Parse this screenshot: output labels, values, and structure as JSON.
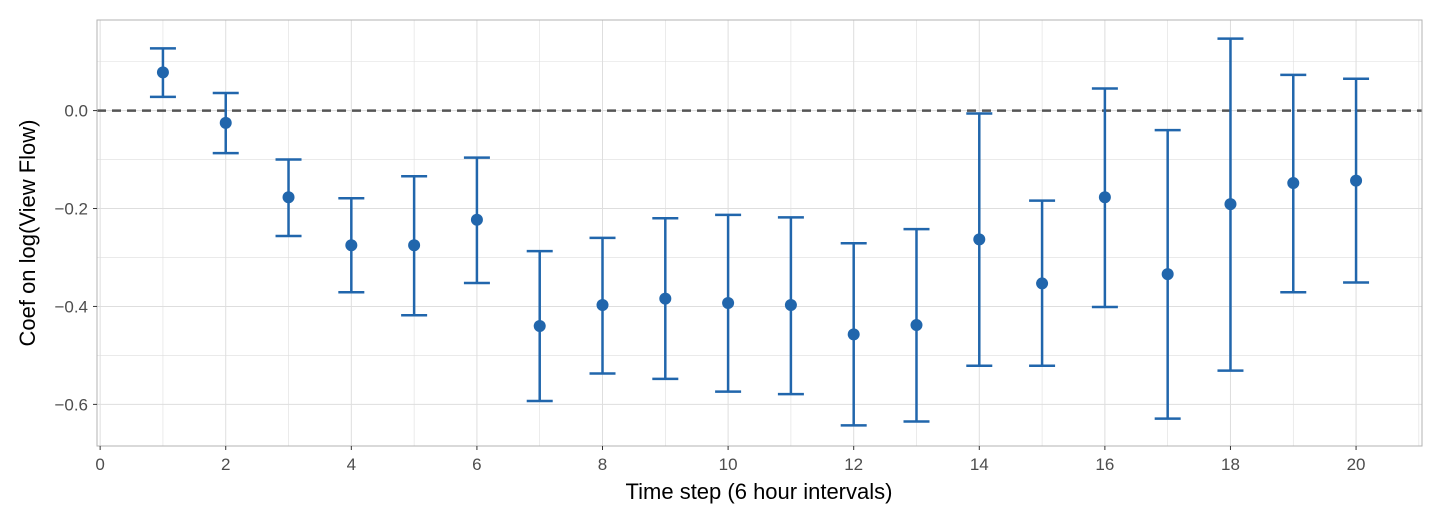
{
  "chart_data": {
    "type": "errorbar",
    "xlabel": "Time step (6 hour intervals)",
    "ylabel": "Coef on log(View Flow)",
    "xlim": [
      -0.05,
      21.05
    ],
    "ylim": [
      -0.685,
      0.185
    ],
    "x_ticks": [
      0,
      2,
      4,
      6,
      8,
      10,
      12,
      14,
      16,
      18,
      20
    ],
    "x_tick_labels": [
      "0",
      "2",
      "4",
      "6",
      "8",
      "10",
      "12",
      "14",
      "16",
      "18",
      "20"
    ],
    "y_ticks": [
      0.0,
      -0.2,
      -0.4,
      -0.6
    ],
    "y_tick_labels": [
      "0.0",
      "−0.2",
      "−0.4",
      "−0.6"
    ],
    "reference_line": 0,
    "grid": true,
    "colors": {
      "point": "#2166ac",
      "errorbar": "#2166ac",
      "reference": "#555555",
      "grid": "#dedede",
      "panel_border": "#b3b3b3"
    },
    "series": [
      {
        "points": [
          {
            "x": 1,
            "y": 0.078,
            "lo": 0.028,
            "hi": 0.127
          },
          {
            "x": 2,
            "y": -0.025,
            "lo": -0.087,
            "hi": 0.036
          },
          {
            "x": 3,
            "y": -0.177,
            "lo": -0.256,
            "hi": -0.1
          },
          {
            "x": 4,
            "y": -0.275,
            "lo": -0.371,
            "hi": -0.179
          },
          {
            "x": 5,
            "y": -0.275,
            "lo": -0.418,
            "hi": -0.134
          },
          {
            "x": 6,
            "y": -0.223,
            "lo": -0.352,
            "hi": -0.096
          },
          {
            "x": 7,
            "y": -0.44,
            "lo": -0.593,
            "hi": -0.287
          },
          {
            "x": 8,
            "y": -0.397,
            "lo": -0.537,
            "hi": -0.26
          },
          {
            "x": 9,
            "y": -0.384,
            "lo": -0.548,
            "hi": -0.22
          },
          {
            "x": 10,
            "y": -0.393,
            "lo": -0.574,
            "hi": -0.213
          },
          {
            "x": 11,
            "y": -0.397,
            "lo": -0.579,
            "hi": -0.218
          },
          {
            "x": 12,
            "y": -0.457,
            "lo": -0.643,
            "hi": -0.271
          },
          {
            "x": 13,
            "y": -0.438,
            "lo": -0.635,
            "hi": -0.242
          },
          {
            "x": 14,
            "y": -0.263,
            "lo": -0.521,
            "hi": -0.006
          },
          {
            "x": 15,
            "y": -0.353,
            "lo": -0.521,
            "hi": -0.184
          },
          {
            "x": 16,
            "y": -0.177,
            "lo": -0.401,
            "hi": 0.045
          },
          {
            "x": 17,
            "y": -0.334,
            "lo": -0.629,
            "hi": -0.04
          },
          {
            "x": 18,
            "y": -0.191,
            "lo": -0.531,
            "hi": 0.147
          },
          {
            "x": 19,
            "y": -0.148,
            "lo": -0.371,
            "hi": 0.073
          },
          {
            "x": 20,
            "y": -0.143,
            "lo": -0.351,
            "hi": 0.065
          }
        ]
      }
    ]
  }
}
